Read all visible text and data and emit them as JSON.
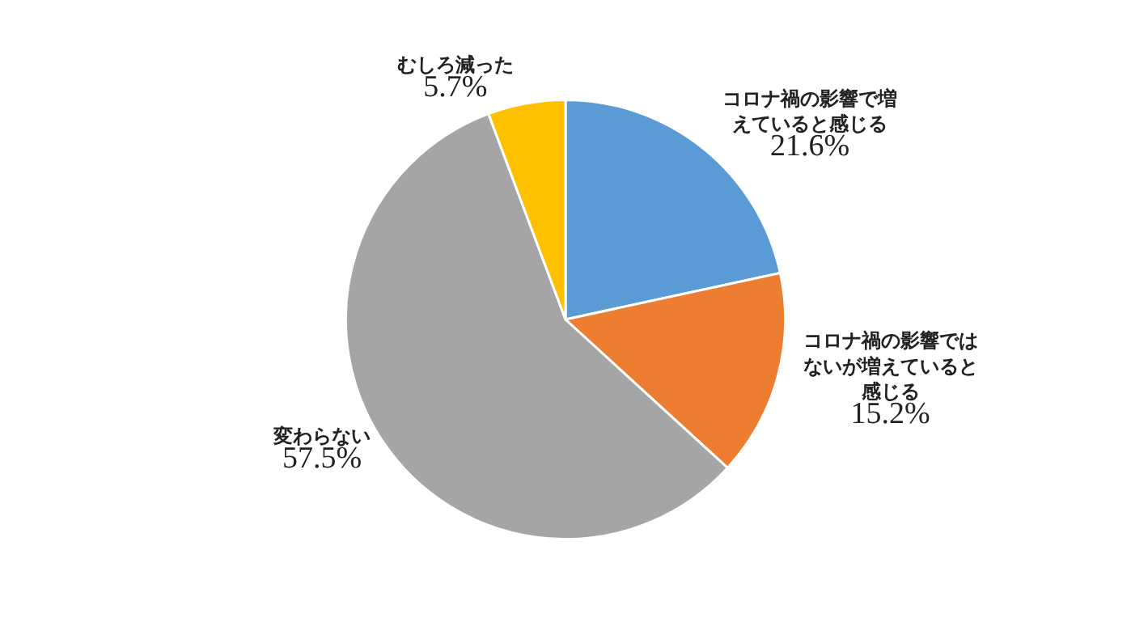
{
  "chart_data": {
    "type": "pie",
    "categories": [
      "コロナ禍の影響で増えていると感じる",
      "コロナ禍の影響ではないが増えていると感じる",
      "変わらない",
      "むしろ減った"
    ],
    "values": [
      21.6,
      15.2,
      57.5,
      5.7
    ],
    "value_labels": [
      "21.6%",
      "15.2%",
      "57.5%",
      "5.7%"
    ],
    "colors": [
      "#5b9bd5",
      "#ed7d31",
      "#a5a5a5",
      "#ffc000"
    ],
    "legend": false
  }
}
